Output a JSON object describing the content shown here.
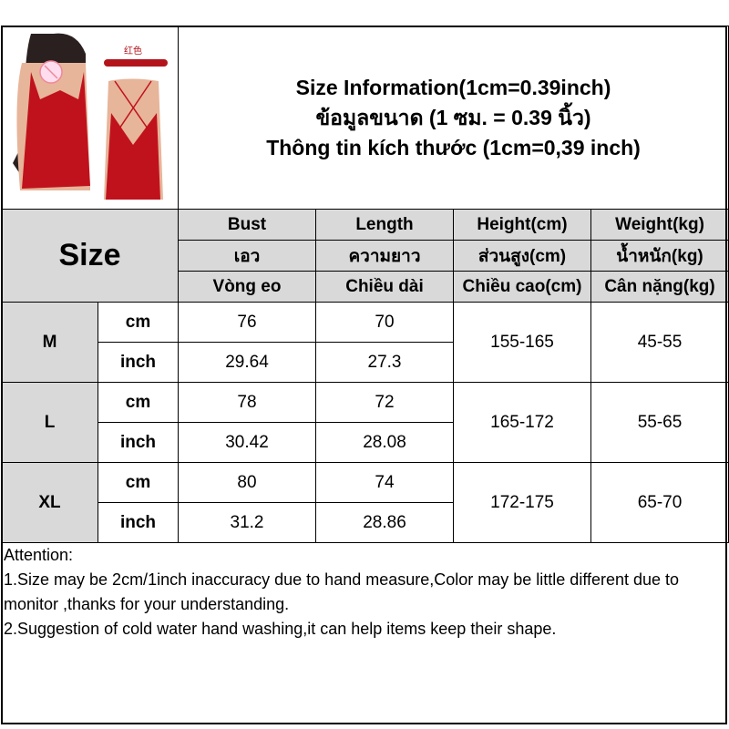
{
  "product_image": {
    "color_label": "红色",
    "colors": {
      "dress": "#c0121c",
      "badge": "#b3141c"
    }
  },
  "header": {
    "lines": [
      "Size Information(1cm=0.39inch)",
      "ข้อมูลขนาด (1 ซม. = 0.39 นิ้ว)",
      "Thông tin kích thước (1cm=0,39 inch)"
    ]
  },
  "table": {
    "size_label": "Size",
    "columns": [
      {
        "en": "Bust",
        "th": "เอว",
        "vi": "Vòng eo"
      },
      {
        "en": "Length",
        "th": "ความยาว",
        "vi": "Chiều dài"
      },
      {
        "en": "Height(cm)",
        "th": "ส่วนสูง(cm)",
        "vi": "Chiều cao(cm)"
      },
      {
        "en": "Weight(kg)",
        "th": "น้ำหนัก(kg)",
        "vi": "Cân nặng(kg)"
      }
    ],
    "rows": [
      {
        "size": "M",
        "cm_label": "cm",
        "inch_label": "inch",
        "bust_cm": "76",
        "length_cm": "70",
        "bust_inch": "29.64",
        "length_inch": "27.3",
        "height": "155-165",
        "weight": "45-55"
      },
      {
        "size": "L",
        "cm_label": "cm",
        "inch_label": "inch",
        "bust_cm": "78",
        "length_cm": "72",
        "bust_inch": "30.42",
        "length_inch": "28.08",
        "height": "165-172",
        "weight": "55-65"
      },
      {
        "size": "XL",
        "cm_label": "cm",
        "inch_label": "inch",
        "bust_cm": "80",
        "length_cm": "74",
        "bust_inch": "31.2",
        "length_inch": "28.86",
        "height": "172-175",
        "weight": "65-70"
      }
    ]
  },
  "attention": {
    "title": "Attention:",
    "notes": [
      "1.Size may be 2cm/1inch inaccuracy due to hand measure,Color may be little different due to monitor ,thanks for your understanding.",
      "2.Suggestion of cold water hand washing,it can help items keep their shape."
    ]
  }
}
